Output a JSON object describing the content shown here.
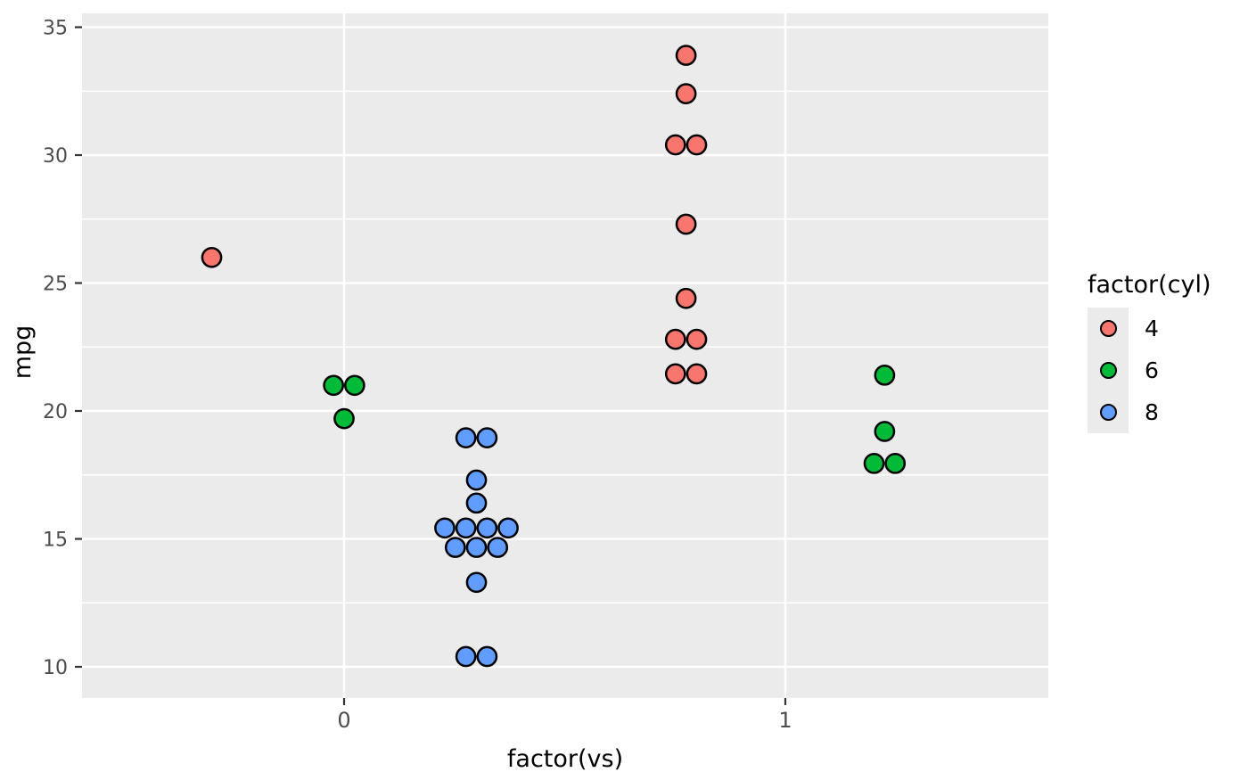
{
  "chart_data": {
    "type": "scatter",
    "subtype": "dotplot-center-stacked-dodged",
    "title": "",
    "xlabel": "factor(vs)",
    "ylabel": "mpg",
    "x_categories": [
      "0",
      "1"
    ],
    "y_major_ticks": [
      10,
      15,
      20,
      25,
      30,
      35
    ],
    "y_minor_ticks": [
      12.5,
      17.5,
      22.5,
      27.5,
      32.5
    ],
    "ylim": [
      8.7,
      35.5
    ],
    "binwidth": 0.7833,
    "grid": "on",
    "legend_position": "right",
    "legend": {
      "title": "factor(cyl)",
      "entries": [
        {
          "label": "4",
          "color": "#F8766D"
        },
        {
          "label": "6",
          "color": "#00BA38"
        },
        {
          "label": "8",
          "color": "#619CFF"
        }
      ]
    },
    "series": [
      {
        "name": "4",
        "color": "#F8766D",
        "groups": [
          {
            "vs": 0,
            "values": [
              26.0
            ]
          },
          {
            "vs": 1,
            "values": [
              22.8,
              24.4,
              22.8,
              32.4,
              30.4,
              33.9,
              21.5,
              27.3,
              30.4,
              21.4
            ]
          }
        ]
      },
      {
        "name": "6",
        "color": "#00BA38",
        "groups": [
          {
            "vs": 0,
            "values": [
              21.0,
              21.0,
              19.7
            ]
          },
          {
            "vs": 1,
            "values": [
              21.4,
              18.1,
              19.2,
              17.8
            ]
          }
        ]
      },
      {
        "name": "8",
        "color": "#619CFF",
        "groups": [
          {
            "vs": 0,
            "values": [
              18.7,
              14.3,
              16.4,
              17.3,
              15.2,
              10.4,
              10.4,
              14.7,
              15.5,
              15.2,
              13.3,
              19.2,
              15.8,
              15.0
            ]
          }
        ]
      }
    ]
  },
  "style": {
    "panel_background": "#EBEBEB",
    "gridline_color": "#FFFFFF",
    "tick_mark_color": "#333333",
    "tick_label_color": "#4D4D4D",
    "axis_title_color": "#000000",
    "point_outline_color": "#000000"
  }
}
